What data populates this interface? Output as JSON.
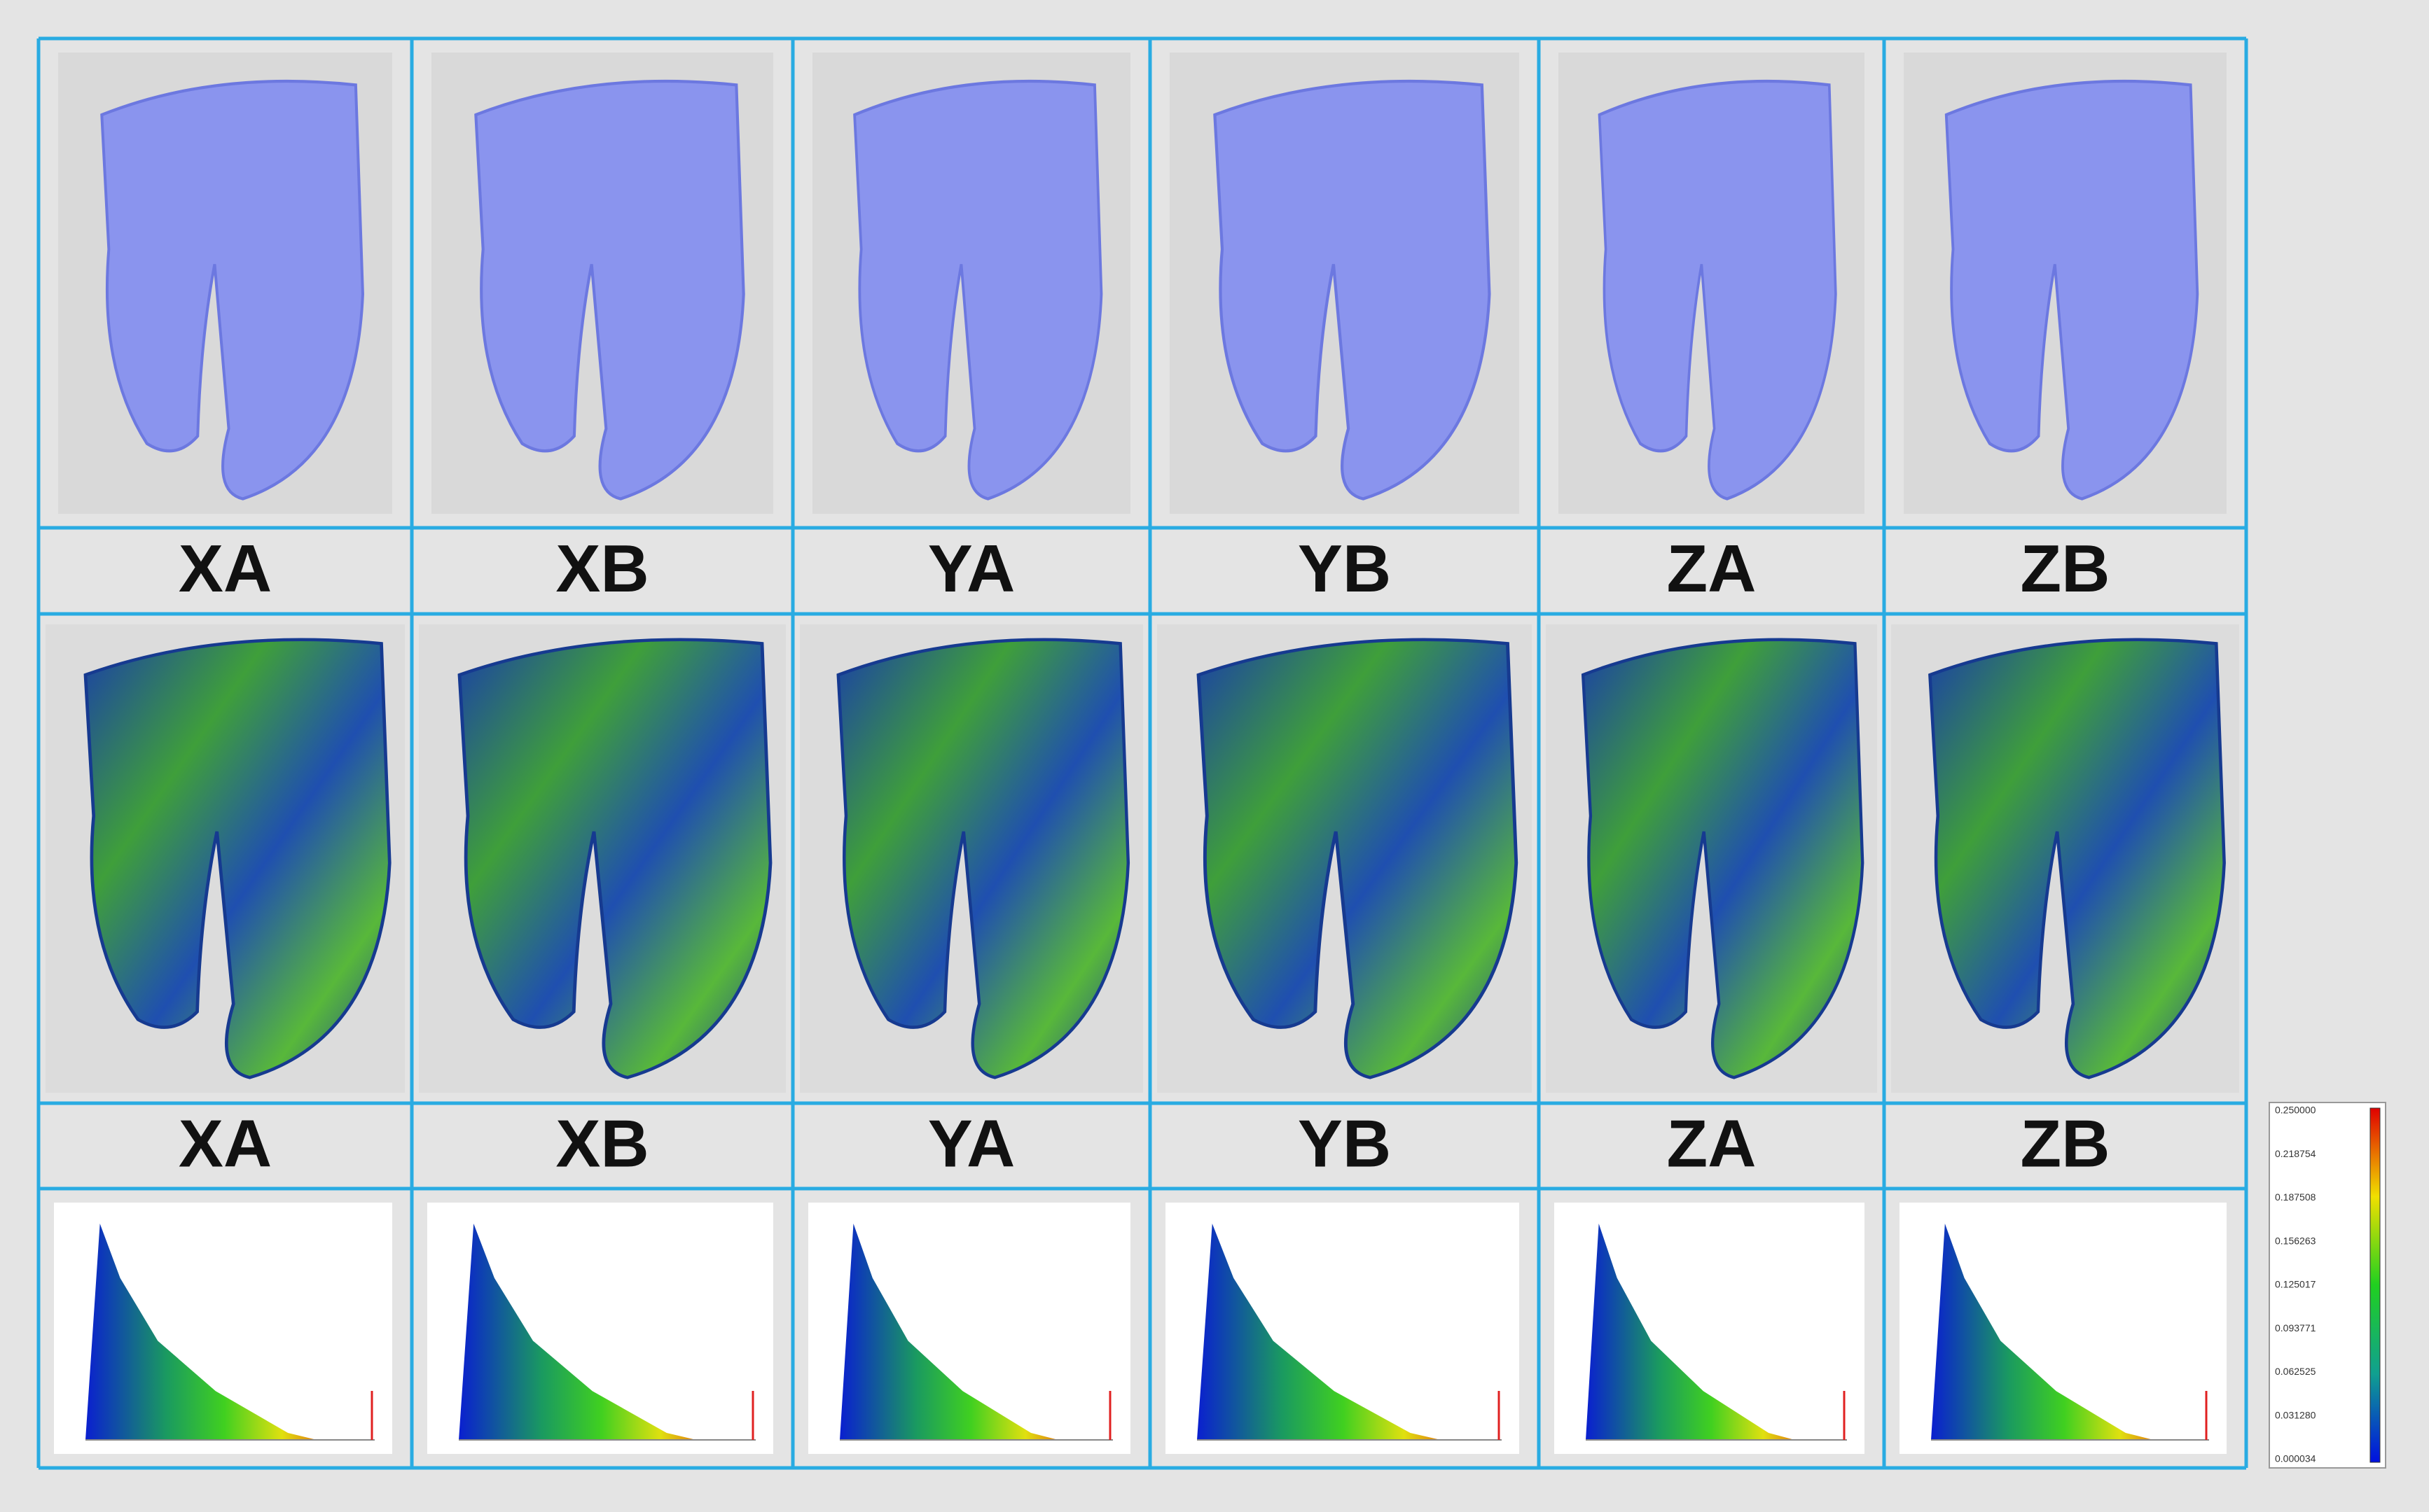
{
  "surface_labels": [
    "XA",
    "XB",
    "YA",
    "YB",
    "ZA",
    "ZB"
  ],
  "deviation_labels": [
    "XA",
    "XB",
    "YA",
    "YB",
    "ZA",
    "ZB"
  ],
  "color_scale": {
    "ticks": [
      "0.250000",
      "0.218754",
      "0.187508",
      "0.156263",
      "0.125017",
      "0.093771",
      "0.062525",
      "0.031280",
      "0.000034"
    ]
  }
}
